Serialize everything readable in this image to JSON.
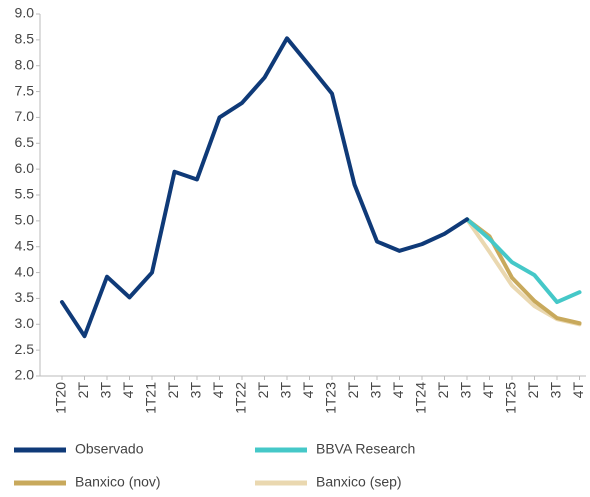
{
  "chart_data": {
    "type": "line",
    "categories": [
      "1T20",
      "2T",
      "3T",
      "4T",
      "1T21",
      "2T",
      "3T",
      "4T",
      "1T22",
      "2T",
      "3T",
      "4T",
      "1T23",
      "2T",
      "3T",
      "4T",
      "1T24",
      "2T",
      "3T",
      "4T",
      "1T25",
      "2T",
      "3T",
      "4T"
    ],
    "series": [
      {
        "name": "Observado",
        "color": "#0f3a78",
        "values": [
          3.43,
          2.77,
          3.92,
          3.52,
          4.0,
          5.95,
          5.8,
          7.0,
          7.28,
          7.77,
          8.53,
          8.0,
          7.46,
          5.7,
          4.6,
          4.42,
          4.55,
          4.75,
          5.03,
          null,
          null,
          null,
          null,
          null
        ]
      },
      {
        "name": "BBVA Research",
        "color": "#45c8c8",
        "values": [
          null,
          null,
          null,
          null,
          null,
          null,
          null,
          null,
          null,
          null,
          null,
          null,
          null,
          null,
          null,
          null,
          null,
          null,
          5.03,
          4.65,
          4.2,
          3.95,
          3.43,
          3.62
        ]
      },
      {
        "name": "Banxico (nov)",
        "color": "#c8a95c",
        "values": [
          null,
          null,
          null,
          null,
          null,
          null,
          null,
          null,
          null,
          null,
          null,
          null,
          null,
          null,
          null,
          null,
          null,
          null,
          5.03,
          4.7,
          3.9,
          3.45,
          3.12,
          3.02
        ]
      },
      {
        "name": "Banxico (sep)",
        "color": "#ead8b0",
        "values": [
          null,
          null,
          null,
          null,
          null,
          null,
          null,
          null,
          null,
          null,
          null,
          null,
          null,
          null,
          null,
          null,
          null,
          null,
          5.03,
          4.4,
          3.75,
          3.35,
          3.1,
          3.0
        ]
      }
    ],
    "ylim": [
      2,
      9
    ],
    "yticks": [
      {
        "value": 2,
        "label": "2.0"
      },
      2.5,
      {
        "value": 3,
        "label": "3.0"
      },
      3.5,
      {
        "value": 4,
        "label": "4.0"
      },
      4.5,
      {
        "value": 5,
        "label": "5.0"
      },
      5.5,
      {
        "value": 6,
        "label": "6.0"
      },
      6.5,
      {
        "value": 7,
        "label": "7.0"
      },
      7.5,
      {
        "value": 8,
        "label": "8.0"
      },
      8.5,
      {
        "value": 9,
        "label": "9.0"
      }
    ],
    "grid": false
  }
}
